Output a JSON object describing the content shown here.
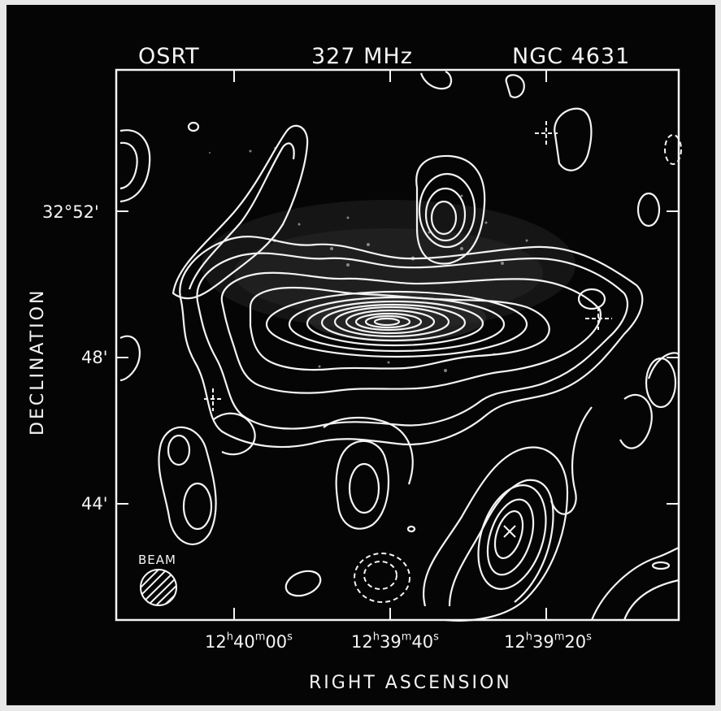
{
  "figure": {
    "telescope": "OSRT",
    "frequency": "327 MHz",
    "object": "NGC 4631",
    "x_axis_label": "RIGHT ASCENSION",
    "y_axis_label": "DECLINATION",
    "beam_label": "BEAM",
    "ra_ticks": [
      {
        "h": "12",
        "m": "40",
        "s": "00"
      },
      {
        "h": "12",
        "m": "39",
        "s": "40"
      },
      {
        "h": "12",
        "m": "39",
        "s": "20"
      }
    ],
    "ra_unit_h": "h",
    "ra_unit_m": "m",
    "ra_unit_s": "s",
    "dec_ticks": [
      "32°52'",
      "48'",
      "44'"
    ],
    "colors": {
      "background": "#050505",
      "contour": "#f4f4f4"
    }
  }
}
